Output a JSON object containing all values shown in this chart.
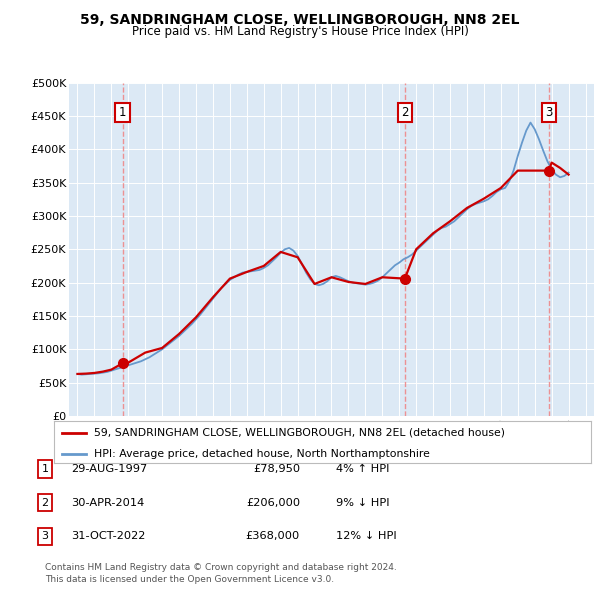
{
  "title": "59, SANDRINGHAM CLOSE, WELLINGBOROUGH, NN8 2EL",
  "subtitle": "Price paid vs. HM Land Registry's House Price Index (HPI)",
  "legend_line1": "59, SANDRINGHAM CLOSE, WELLINGBOROUGH, NN8 2EL (detached house)",
  "legend_line2": "HPI: Average price, detached house, North Northamptonshire",
  "footer1": "Contains HM Land Registry data © Crown copyright and database right 2024.",
  "footer2": "This data is licensed under the Open Government Licence v3.0.",
  "sales": [
    {
      "num": 1,
      "date": "29-AUG-1997",
      "price": "78,950",
      "hpi_diff": "4% ↑ HPI",
      "year": 1997.66
    },
    {
      "num": 2,
      "date": "30-APR-2014",
      "price": "206,000",
      "hpi_diff": "9% ↓ HPI",
      "year": 2014.33
    },
    {
      "num": 3,
      "date": "31-OCT-2022",
      "price": "368,000",
      "hpi_diff": "12% ↓ HPI",
      "year": 2022.83
    }
  ],
  "ylim": [
    0,
    500000
  ],
  "xlim": [
    1994.5,
    2025.5
  ],
  "yticks": [
    0,
    50000,
    100000,
    150000,
    200000,
    250000,
    300000,
    350000,
    400000,
    450000,
    500000
  ],
  "ytick_labels": [
    "£0",
    "£50K",
    "£100K",
    "£150K",
    "£200K",
    "£250K",
    "£300K",
    "£350K",
    "£400K",
    "£450K",
    "£500K"
  ],
  "xticks": [
    1995,
    1996,
    1997,
    1998,
    1999,
    2000,
    2001,
    2002,
    2003,
    2004,
    2005,
    2006,
    2007,
    2008,
    2009,
    2010,
    2011,
    2012,
    2013,
    2014,
    2015,
    2016,
    2017,
    2018,
    2019,
    2020,
    2021,
    2022,
    2023,
    2024,
    2025
  ],
  "hpi_years": [
    1995.0,
    1995.25,
    1995.5,
    1995.75,
    1996.0,
    1996.25,
    1996.5,
    1996.75,
    1997.0,
    1997.25,
    1997.5,
    1997.75,
    1998.0,
    1998.25,
    1998.5,
    1998.75,
    1999.0,
    1999.25,
    1999.5,
    1999.75,
    2000.0,
    2000.25,
    2000.5,
    2000.75,
    2001.0,
    2001.25,
    2001.5,
    2001.75,
    2002.0,
    2002.25,
    2002.5,
    2002.75,
    2003.0,
    2003.25,
    2003.5,
    2003.75,
    2004.0,
    2004.25,
    2004.5,
    2004.75,
    2005.0,
    2005.25,
    2005.5,
    2005.75,
    2006.0,
    2006.25,
    2006.5,
    2006.75,
    2007.0,
    2007.25,
    2007.5,
    2007.75,
    2008.0,
    2008.25,
    2008.5,
    2008.75,
    2009.0,
    2009.25,
    2009.5,
    2009.75,
    2010.0,
    2010.25,
    2010.5,
    2010.75,
    2011.0,
    2011.25,
    2011.5,
    2011.75,
    2012.0,
    2012.25,
    2012.5,
    2012.75,
    2013.0,
    2013.25,
    2013.5,
    2013.75,
    2014.0,
    2014.25,
    2014.5,
    2014.75,
    2015.0,
    2015.25,
    2015.5,
    2015.75,
    2016.0,
    2016.25,
    2016.5,
    2016.75,
    2017.0,
    2017.25,
    2017.5,
    2017.75,
    2018.0,
    2018.25,
    2018.5,
    2018.75,
    2019.0,
    2019.25,
    2019.5,
    2019.75,
    2020.0,
    2020.25,
    2020.5,
    2020.75,
    2021.0,
    2021.25,
    2021.5,
    2021.75,
    2022.0,
    2022.25,
    2022.5,
    2022.75,
    2023.0,
    2023.25,
    2023.5,
    2023.75,
    2024.0
  ],
  "hpi_values": [
    63000,
    62000,
    62500,
    63000,
    63500,
    64000,
    65000,
    66000,
    68000,
    70000,
    72000,
    74000,
    76000,
    78000,
    80000,
    82000,
    85000,
    88000,
    92000,
    96000,
    100000,
    105000,
    110000,
    115000,
    120000,
    126000,
    132000,
    138000,
    145000,
    152000,
    160000,
    168000,
    176000,
    184000,
    192000,
    198000,
    204000,
    208000,
    212000,
    215000,
    216000,
    217000,
    218000,
    219000,
    222000,
    226000,
    232000,
    238000,
    245000,
    250000,
    252000,
    248000,
    240000,
    228000,
    215000,
    205000,
    198000,
    196000,
    198000,
    202000,
    208000,
    210000,
    208000,
    205000,
    202000,
    200000,
    199000,
    198000,
    197000,
    198000,
    200000,
    203000,
    208000,
    214000,
    220000,
    226000,
    230000,
    235000,
    238000,
    242000,
    248000,
    254000,
    260000,
    266000,
    272000,
    278000,
    282000,
    284000,
    288000,
    292000,
    298000,
    304000,
    310000,
    315000,
    318000,
    320000,
    322000,
    325000,
    330000,
    336000,
    340000,
    342000,
    352000,
    368000,
    390000,
    410000,
    428000,
    440000,
    430000,
    415000,
    398000,
    382000,
    370000,
    362000,
    358000,
    360000,
    365000
  ],
  "property_years": [
    1995.0,
    1995.5,
    1996.0,
    1996.5,
    1997.0,
    1997.66,
    1998.0,
    1999.0,
    2000.0,
    2001.0,
    2002.0,
    2003.0,
    2004.0,
    2005.0,
    2006.0,
    2007.0,
    2008.0,
    2009.0,
    2010.0,
    2011.0,
    2012.0,
    2013.0,
    2014.33,
    2015.0,
    2016.0,
    2017.0,
    2018.0,
    2019.0,
    2020.0,
    2021.0,
    2022.83,
    2023.0,
    2023.5,
    2024.0
  ],
  "property_values": [
    63000,
    63500,
    64500,
    66500,
    69500,
    78950,
    80000,
    95000,
    102000,
    123000,
    148000,
    178000,
    206000,
    216000,
    225000,
    246000,
    238000,
    198000,
    208000,
    201000,
    198000,
    208000,
    206000,
    250000,
    274000,
    292000,
    312000,
    326000,
    342000,
    368000,
    368000,
    380000,
    372000,
    362000
  ],
  "bg_color": "#dce9f5",
  "red_color": "#cc0000",
  "blue_color": "#6699cc",
  "grid_color": "#ffffff",
  "dashed_line_color": "#ee8888",
  "sale_marker_color": "#cc0000",
  "title_fontsize": 10,
  "subtitle_fontsize": 8.5
}
